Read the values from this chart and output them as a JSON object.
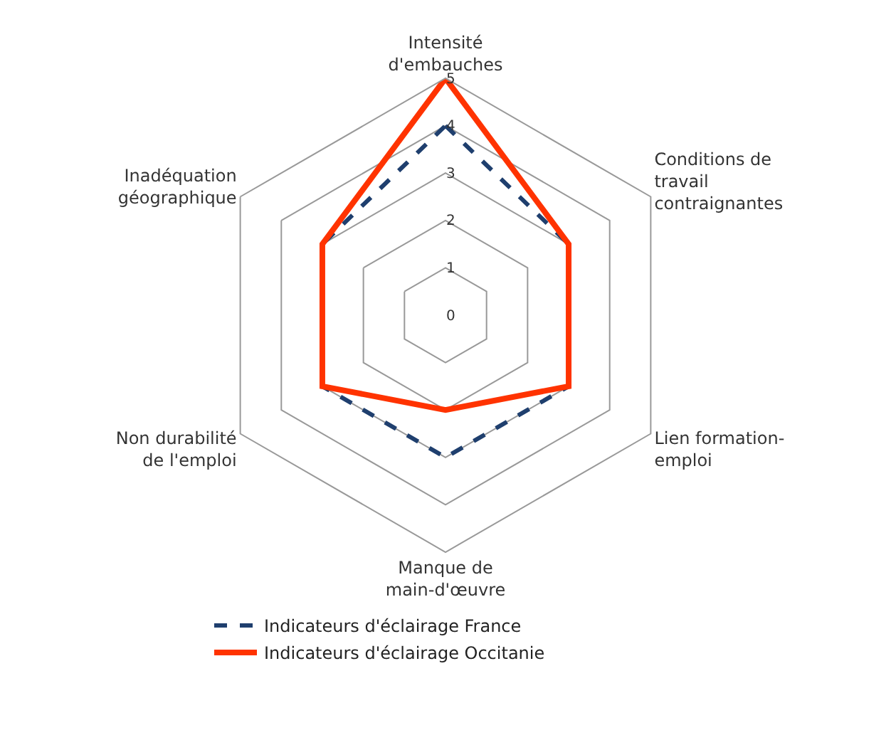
{
  "chart_data": {
    "type": "radar",
    "categories": [
      "Intensité\nd'embauches",
      "Conditions de\ntravail\ncontraignantes",
      "Lien formation-\nemploi",
      "Manque de\nmain-d'œuvre",
      "Non durabilité\nde l'emploi",
      "Inadéquation\ngéographique"
    ],
    "series": [
      {
        "name": "Indicateurs d'éclairage France",
        "color": "#1f3f6e",
        "values": [
          4,
          3,
          3,
          3,
          3,
          3
        ],
        "line_style": "dashed"
      },
      {
        "name": "Indicateurs d'éclairage Occitanie",
        "color": "#ff3300",
        "values": [
          5,
          3,
          3,
          2,
          3,
          3
        ],
        "line_style": "solid"
      }
    ],
    "ylim": [
      0,
      5
    ],
    "yticks": [
      0,
      1,
      2,
      3,
      4,
      5
    ],
    "grid": true,
    "legend": "bottom",
    "marker": "none"
  }
}
